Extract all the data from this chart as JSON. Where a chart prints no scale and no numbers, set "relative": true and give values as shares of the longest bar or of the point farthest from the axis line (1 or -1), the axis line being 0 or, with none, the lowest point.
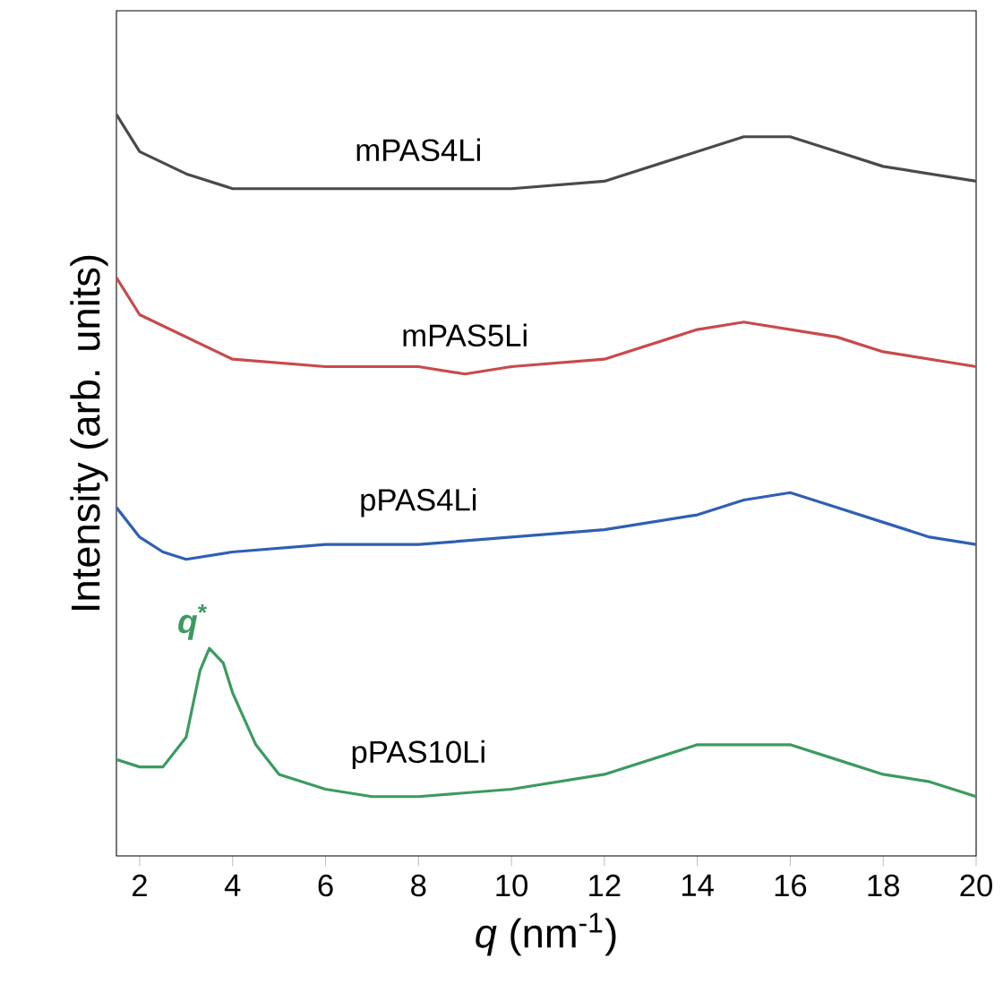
{
  "chart_data": {
    "type": "line",
    "relative": true,
    "xlabel": "*q* (nm$^{-1}$)",
    "ylabel": "Intensity (arb. units)",
    "xlim": [
      1.5,
      20
    ],
    "xticks": [
      2,
      4,
      6,
      8,
      10,
      12,
      14,
      16,
      18,
      20
    ],
    "tick_labels": "x",
    "series": [
      {
        "name": "mPAS4Li",
        "color": "#4a4a4a",
        "x": [
          1.5,
          2,
          3,
          4,
          6,
          8,
          10,
          12,
          13,
          14,
          15,
          16,
          17,
          18,
          19,
          20
        ],
        "values": [
          1.0,
          0.95,
          0.92,
          0.9,
          0.9,
          0.9,
          0.9,
          0.91,
          0.93,
          0.95,
          0.97,
          0.97,
          0.95,
          0.93,
          0.92,
          0.91
        ]
      },
      {
        "name": "mPAS5Li",
        "color": "#c94a4a",
        "x": [
          1.5,
          2,
          3,
          4,
          6,
          8,
          9,
          10,
          12,
          13,
          14,
          15,
          16,
          17,
          18,
          19,
          20
        ],
        "values": [
          0.78,
          0.73,
          0.7,
          0.67,
          0.66,
          0.66,
          0.65,
          0.66,
          0.67,
          0.69,
          0.71,
          0.72,
          0.71,
          0.7,
          0.68,
          0.67,
          0.66
        ]
      },
      {
        "name": "pPAS4Li",
        "color": "#2f5fb3",
        "x": [
          1.5,
          2,
          2.5,
          3,
          4,
          6,
          8,
          10,
          12,
          13,
          14,
          15,
          16,
          17,
          18,
          19,
          20
        ],
        "values": [
          0.47,
          0.43,
          0.41,
          0.4,
          0.41,
          0.42,
          0.42,
          0.43,
          0.44,
          0.45,
          0.46,
          0.48,
          0.49,
          0.47,
          0.45,
          0.43,
          0.42
        ]
      },
      {
        "name": "pPAS10Li",
        "color": "#3c9a60",
        "x": [
          1.5,
          2,
          2.5,
          3,
          3.3,
          3.5,
          3.8,
          4,
          4.5,
          5,
          6,
          7,
          8,
          10,
          12,
          13,
          14,
          15,
          16,
          17,
          18,
          19,
          20
        ],
        "values": [
          0.13,
          0.12,
          0.12,
          0.16,
          0.25,
          0.28,
          0.26,
          0.22,
          0.15,
          0.11,
          0.09,
          0.08,
          0.08,
          0.09,
          0.11,
          0.13,
          0.15,
          0.15,
          0.15,
          0.13,
          0.11,
          0.1,
          0.08
        ]
      }
    ],
    "annotations": [
      {
        "text": "*q*$^{*}$",
        "x": 3.5,
        "y": 0.28
      }
    ]
  }
}
